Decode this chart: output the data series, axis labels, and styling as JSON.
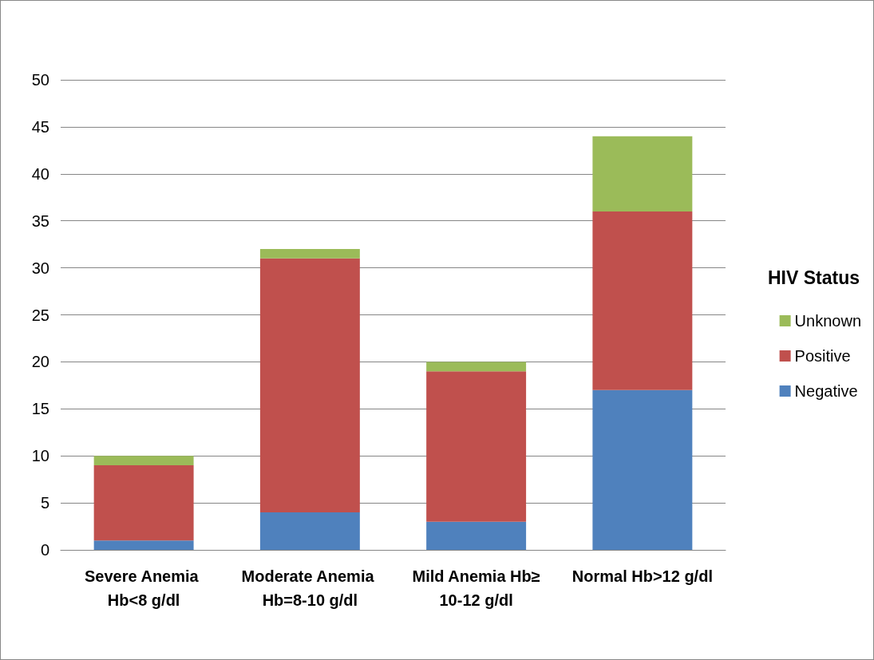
{
  "chart_data": {
    "type": "bar",
    "stacked": true,
    "legend_title": "HIV Status",
    "legend": "right",
    "grid": "y",
    "categories": [
      "Severe Anemia Hb<8 g/dl",
      "Moderate Anemia Hb=8-10 g/dl",
      "Mild Anemia Hb≥10-12 g/dl",
      "Normal Hb>12 g/dl"
    ],
    "series": [
      {
        "name": "Negative",
        "color": "#4f81bd",
        "values": [
          1,
          4,
          3,
          17
        ]
      },
      {
        "name": "Positive",
        "color": "#c0504d",
        "values": [
          8,
          27,
          16,
          19
        ]
      },
      {
        "name": "Unknown",
        "color": "#9bbb59",
        "values": [
          1,
          1,
          1,
          8
        ]
      }
    ],
    "ylim": [
      0,
      50
    ],
    "yticks": [
      0,
      5,
      10,
      15,
      20,
      25,
      30,
      35,
      40,
      45,
      50
    ]
  }
}
